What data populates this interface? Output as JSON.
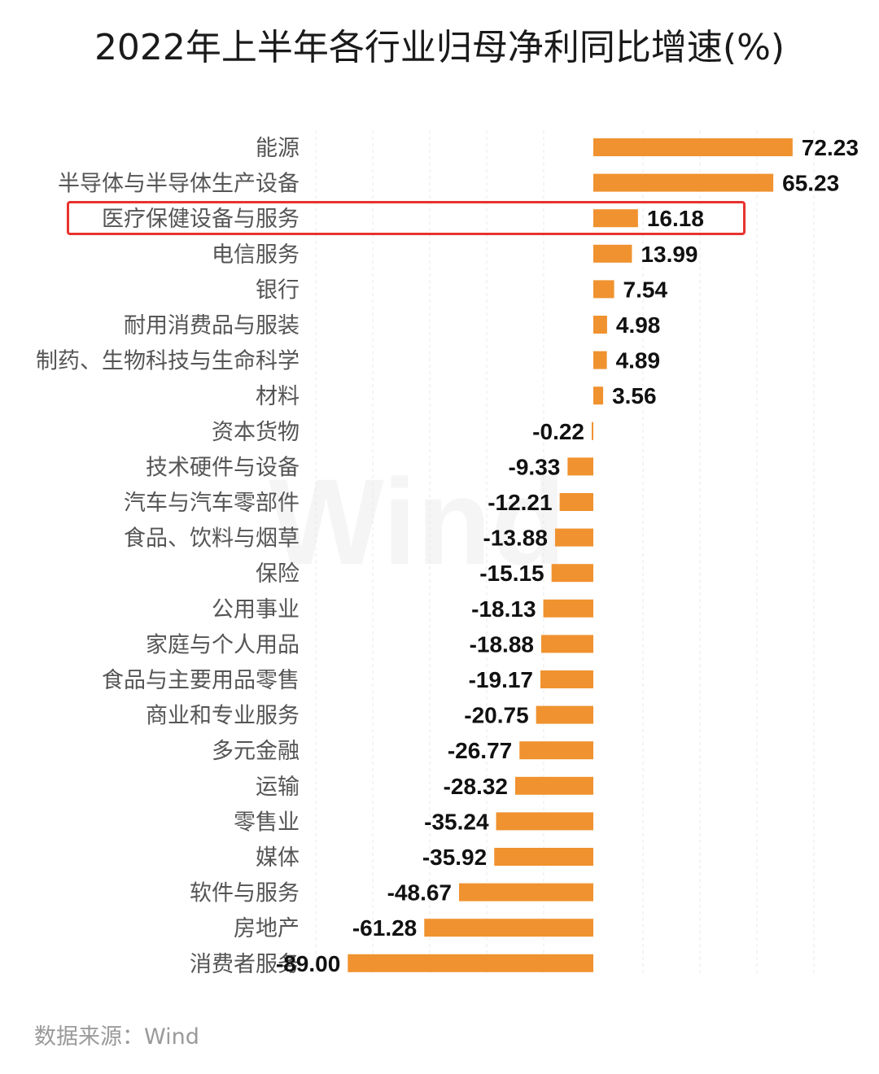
{
  "chart_data": {
    "type": "bar",
    "orientation": "horizontal",
    "title": "2022年上半年各行业归母净利同比增速(%)",
    "categories": [
      "能源",
      "半导体与半导体生产设备",
      "医疗保健设备与服务",
      "电信服务",
      "银行",
      "耐用消费品与服装",
      "制药、生物科技与生命科学",
      "材料",
      "资本货物",
      "技术硬件与设备",
      "汽车与汽车零部件",
      "食品、饮料与烟草",
      "保险",
      "公用事业",
      "家庭与个人用品",
      "食品与主要用品零售",
      "商业和专业服务",
      "多元金融",
      "运输",
      "零售业",
      "媒体",
      "软件与服务",
      "房地产",
      "消费者服务"
    ],
    "values": [
      72.23,
      65.23,
      16.18,
      13.99,
      7.54,
      4.98,
      4.89,
      3.56,
      -0.22,
      -9.33,
      -12.21,
      -13.88,
      -15.15,
      -18.13,
      -18.88,
      -19.17,
      -20.75,
      -26.77,
      -28.32,
      -35.24,
      -35.92,
      -48.67,
      -61.28,
      -89.0
    ],
    "value_labels": [
      "72.23",
      "65.23",
      "16.18",
      "13.99",
      "7.54",
      "4.98",
      "4.89",
      "3.56",
      "-0.22",
      "-9.33",
      "-12.21",
      "-13.88",
      "-15.15",
      "-18.13",
      "-18.88",
      "-19.17",
      "-20.75",
      "-26.77",
      "-28.32",
      "-35.24",
      "-35.92",
      "-48.67",
      "-61.28",
      "-89.00"
    ],
    "highlighted_category": "医疗保健设备与服务",
    "bar_color": "#f0922f",
    "highlight_color": "#e8322e",
    "xlim": [
      -89,
      72.23
    ],
    "grid": true,
    "legend": "none"
  },
  "watermark": "Wind",
  "source": "数据来源：Wind"
}
